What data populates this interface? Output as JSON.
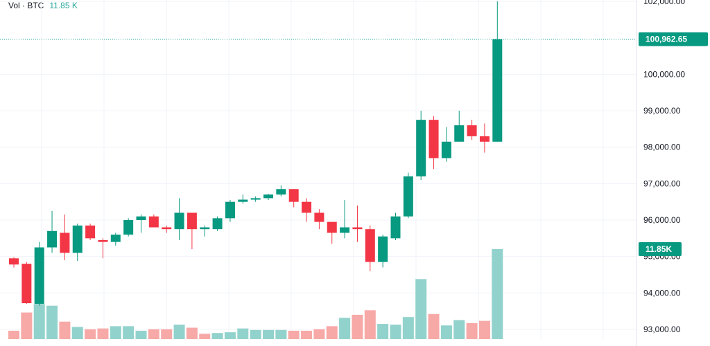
{
  "legend": {
    "label": "Vol · BTC",
    "value": "11.85 K"
  },
  "colors": {
    "up": "#089981",
    "down": "#f23645",
    "vol_up": "#92d2cc",
    "vol_down": "#f7a9a7",
    "grid": "#f0f3fa",
    "price_line": "#089981",
    "vol_badge": "#089981"
  },
  "price_badge": "100,962.65",
  "volume_badge": "11.85K",
  "chart_data": {
    "type": "candlestick",
    "y_axis": {
      "ticks": [
        "102,000.00",
        "100,000.00",
        "99,000.00",
        "98,000.00",
        "97,000.00",
        "96,000.00",
        "95,000.00",
        "94,000.00",
        "93,000.00"
      ],
      "tick_values": [
        102000,
        100000,
        99000,
        98000,
        97000,
        96000,
        95000,
        94000,
        93000
      ],
      "range": [
        92700,
        102050
      ]
    },
    "last_price": 100962.65,
    "candles": [
      {
        "o": 94950,
        "h": 94980,
        "l": 94700,
        "c": 94780
      },
      {
        "o": 94800,
        "h": 94850,
        "l": 93700,
        "c": 93720
      },
      {
        "o": 93700,
        "h": 95400,
        "l": 93650,
        "c": 95250
      },
      {
        "o": 95250,
        "h": 96250,
        "l": 95100,
        "c": 95700
      },
      {
        "o": 95650,
        "h": 96150,
        "l": 94900,
        "c": 95100
      },
      {
        "o": 95100,
        "h": 95900,
        "l": 94880,
        "c": 95850
      },
      {
        "o": 95850,
        "h": 95900,
        "l": 95450,
        "c": 95500
      },
      {
        "o": 95450,
        "h": 95500,
        "l": 94950,
        "c": 95400
      },
      {
        "o": 95400,
        "h": 95650,
        "l": 95300,
        "c": 95600
      },
      {
        "o": 95600,
        "h": 96050,
        "l": 95550,
        "c": 96000
      },
      {
        "o": 96000,
        "h": 96150,
        "l": 95650,
        "c": 96100
      },
      {
        "o": 96100,
        "h": 96150,
        "l": 95800,
        "c": 95800
      },
      {
        "o": 95800,
        "h": 95850,
        "l": 95650,
        "c": 95750
      },
      {
        "o": 95750,
        "h": 96600,
        "l": 95450,
        "c": 96200
      },
      {
        "o": 96200,
        "h": 96200,
        "l": 95200,
        "c": 95750
      },
      {
        "o": 95750,
        "h": 95850,
        "l": 95550,
        "c": 95800
      },
      {
        "o": 95750,
        "h": 96100,
        "l": 95700,
        "c": 96050
      },
      {
        "o": 96050,
        "h": 96550,
        "l": 95950,
        "c": 96500
      },
      {
        "o": 96500,
        "h": 96700,
        "l": 96450,
        "c": 96560
      },
      {
        "o": 96560,
        "h": 96650,
        "l": 96500,
        "c": 96600
      },
      {
        "o": 96600,
        "h": 96720,
        "l": 96550,
        "c": 96700
      },
      {
        "o": 96700,
        "h": 96950,
        "l": 96650,
        "c": 96850
      },
      {
        "o": 96850,
        "h": 96850,
        "l": 96350,
        "c": 96500
      },
      {
        "o": 96500,
        "h": 96600,
        "l": 95950,
        "c": 96200
      },
      {
        "o": 96200,
        "h": 96300,
        "l": 95750,
        "c": 95950
      },
      {
        "o": 95950,
        "h": 95950,
        "l": 95350,
        "c": 95650
      },
      {
        "o": 95650,
        "h": 96550,
        "l": 95500,
        "c": 95800
      },
      {
        "o": 95800,
        "h": 96400,
        "l": 95400,
        "c": 95750
      },
      {
        "o": 95750,
        "h": 95850,
        "l": 94600,
        "c": 94850
      },
      {
        "o": 94850,
        "h": 95600,
        "l": 94700,
        "c": 95550
      },
      {
        "o": 95500,
        "h": 96200,
        "l": 95450,
        "c": 96100
      },
      {
        "o": 96100,
        "h": 97300,
        "l": 96050,
        "c": 97200
      },
      {
        "o": 97200,
        "h": 99000,
        "l": 97100,
        "c": 98750
      },
      {
        "o": 98750,
        "h": 98850,
        "l": 97400,
        "c": 97700
      },
      {
        "o": 97700,
        "h": 98550,
        "l": 97600,
        "c": 98150
      },
      {
        "o": 98150,
        "h": 99000,
        "l": 98150,
        "c": 98600
      },
      {
        "o": 98600,
        "h": 98750,
        "l": 98200,
        "c": 98300
      },
      {
        "o": 98300,
        "h": 98650,
        "l": 97850,
        "c": 98150
      },
      {
        "o": 98150,
        "h": 102000,
        "l": 98150,
        "c": 100962.65
      }
    ],
    "volume": [
      {
        "v": 1.1,
        "up": false
      },
      {
        "v": 3.5,
        "up": false
      },
      {
        "v": 4.6,
        "up": true
      },
      {
        "v": 4.4,
        "up": true
      },
      {
        "v": 2.3,
        "up": false
      },
      {
        "v": 1.6,
        "up": true
      },
      {
        "v": 1.3,
        "up": false
      },
      {
        "v": 1.4,
        "up": false
      },
      {
        "v": 1.7,
        "up": true
      },
      {
        "v": 1.7,
        "up": true
      },
      {
        "v": 1.1,
        "up": true
      },
      {
        "v": 1.3,
        "up": false
      },
      {
        "v": 1.3,
        "up": false
      },
      {
        "v": 1.9,
        "up": true
      },
      {
        "v": 1.5,
        "up": false
      },
      {
        "v": 0.7,
        "up": false
      },
      {
        "v": 0.8,
        "up": true
      },
      {
        "v": 0.9,
        "up": true
      },
      {
        "v": 1.4,
        "up": true
      },
      {
        "v": 1.2,
        "up": true
      },
      {
        "v": 1.2,
        "up": true
      },
      {
        "v": 1.2,
        "up": true
      },
      {
        "v": 1.1,
        "up": false
      },
      {
        "v": 1.1,
        "up": false
      },
      {
        "v": 1.3,
        "up": false
      },
      {
        "v": 1.7,
        "up": false
      },
      {
        "v": 2.8,
        "up": true
      },
      {
        "v": 3.2,
        "up": false
      },
      {
        "v": 3.8,
        "up": false
      },
      {
        "v": 2.0,
        "up": true
      },
      {
        "v": 1.9,
        "up": true
      },
      {
        "v": 2.9,
        "up": true
      },
      {
        "v": 7.9,
        "up": true
      },
      {
        "v": 3.3,
        "up": false
      },
      {
        "v": 1.8,
        "up": true
      },
      {
        "v": 2.5,
        "up": true
      },
      {
        "v": 2.1,
        "up": false
      },
      {
        "v": 2.4,
        "up": false
      },
      {
        "v": 11.85,
        "up": true
      }
    ],
    "volume_scale_max": 11.85
  }
}
